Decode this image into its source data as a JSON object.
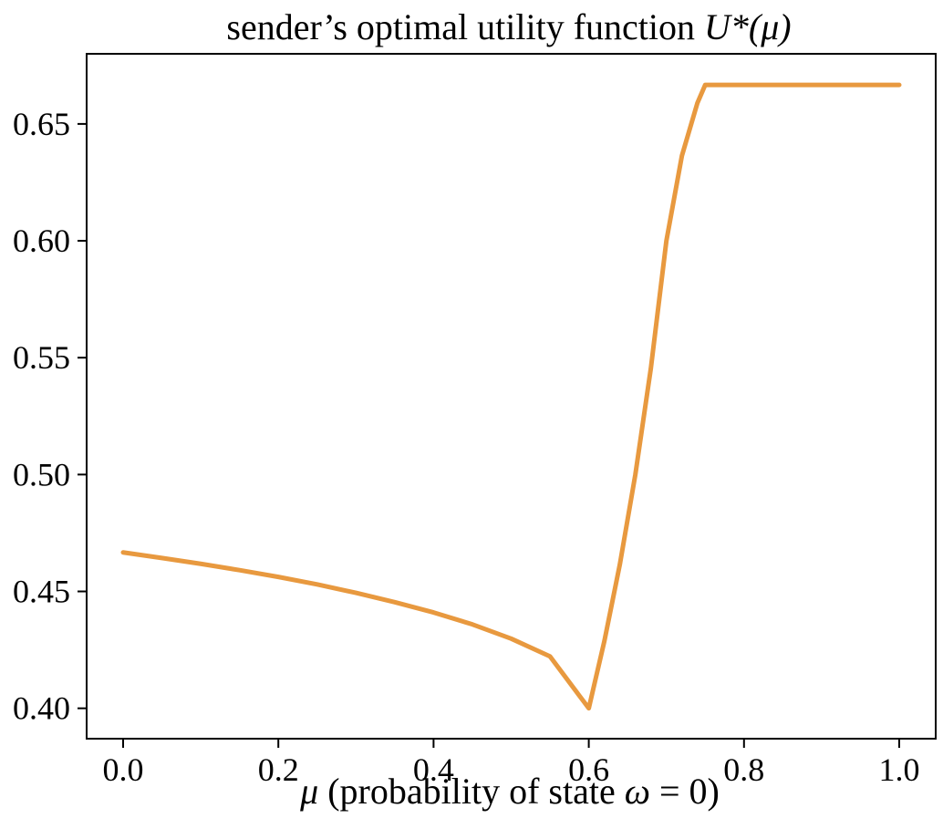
{
  "chart_data": {
    "type": "line",
    "title": {
      "text": "sender’s optimal utility function ",
      "math": "U*(μ)"
    },
    "xlabel": {
      "math_prefix": "μ",
      "text": " (probability of state ",
      "math_state": "ω",
      "text_suffix": " = 0)"
    },
    "ylabel": "",
    "xlim": [
      -0.047,
      1.047
    ],
    "ylim": [
      0.387,
      0.68
    ],
    "xticks": [
      0.0,
      0.2,
      0.4,
      0.6,
      0.8,
      1.0
    ],
    "xtick_labels": [
      "0.0",
      "0.2",
      "0.4",
      "0.6",
      "0.8",
      "1.0"
    ],
    "yticks": [
      0.4,
      0.45,
      0.5,
      0.55,
      0.6,
      0.65
    ],
    "ytick_labels": [
      "0.40",
      "0.45",
      "0.50",
      "0.55",
      "0.60",
      "0.65"
    ],
    "grid": false,
    "series": [
      {
        "name": "U*(μ)",
        "color": "#e8993f",
        "x": [
          0.0,
          0.05,
          0.1,
          0.15,
          0.2,
          0.25,
          0.3,
          0.35,
          0.4,
          0.45,
          0.5,
          0.55,
          0.6,
          0.62,
          0.64,
          0.66,
          0.68,
          0.7,
          0.72,
          0.74,
          0.75,
          0.8,
          0.85,
          0.9,
          0.95,
          1.0
        ],
        "y": [
          0.4667,
          0.4643,
          0.4618,
          0.4591,
          0.4562,
          0.453,
          0.4494,
          0.4454,
          0.441,
          0.4359,
          0.4298,
          0.4222,
          0.4,
          0.4286,
          0.4615,
          0.5,
          0.5455,
          0.6,
          0.6364,
          0.659,
          0.6667,
          0.6667,
          0.6667,
          0.6667,
          0.6667,
          0.6667
        ]
      }
    ]
  }
}
